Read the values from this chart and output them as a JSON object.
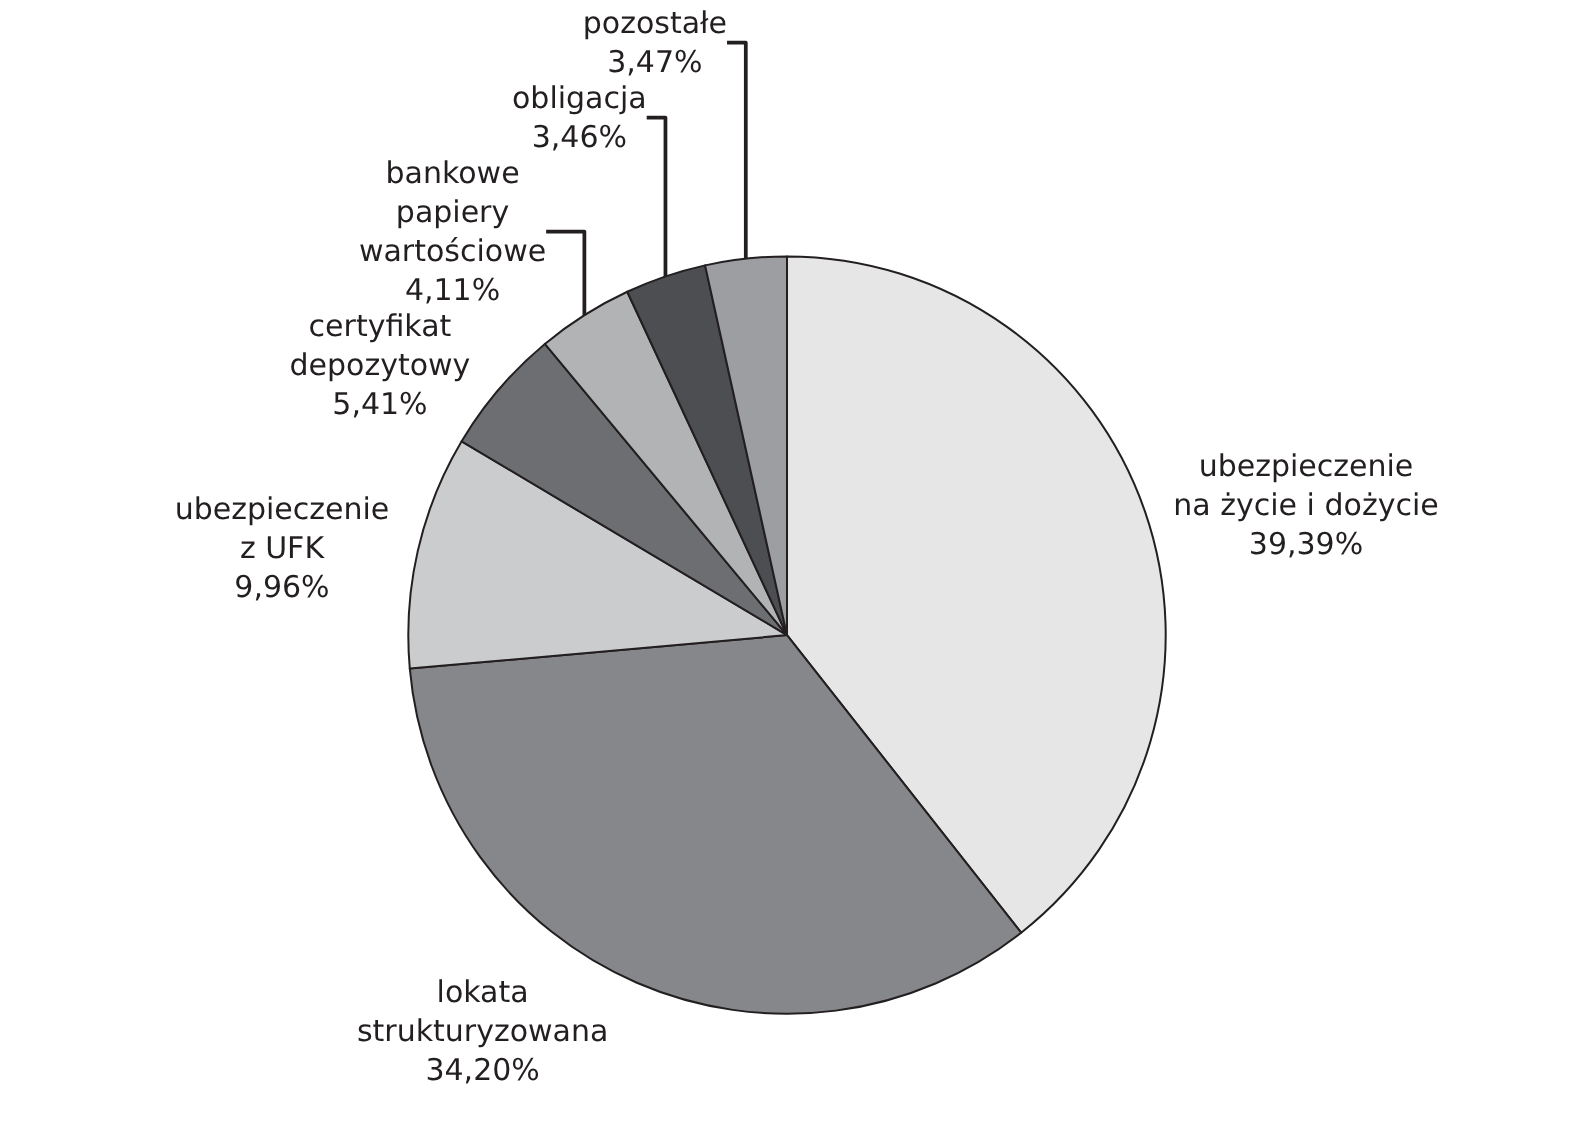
{
  "chart_data": {
    "type": "pie",
    "categories": [
      "ubezpieczenie na życie i dożycie",
      "lokata strukturyzowana",
      "ubezpieczenie z UFK",
      "certyfikat depozytowy",
      "bankowe papiery wartościowe",
      "obligacja",
      "pozostałe"
    ],
    "values": [
      39.39,
      34.2,
      9.96,
      5.41,
      4.11,
      3.46,
      3.47
    ],
    "value_labels": [
      "39,39%",
      "34,20%",
      "9,96%",
      "5,41%",
      "4,11%",
      "3,46%",
      "3,47%"
    ],
    "colors": [
      "#e6e6e7",
      "#86878a",
      "#cbcccd",
      "#6d6e71",
      "#b2b3b5",
      "#4d4e51",
      "#9d9ea1"
    ],
    "legend": false
  }
}
